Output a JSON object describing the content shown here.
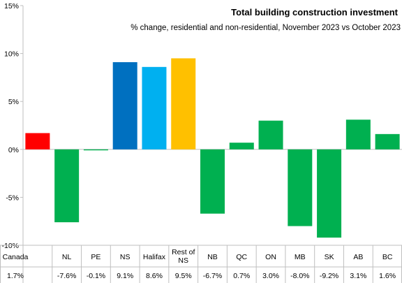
{
  "chart_data": {
    "type": "bar",
    "title": "Total building construction investment",
    "subtitle": "% change, residential and non-residential, November 2023 vs October 2023",
    "xlabel": "",
    "ylabel": "",
    "ylim": [
      -10,
      15
    ],
    "yticks": [
      15,
      10,
      5,
      0,
      -5,
      -10
    ],
    "ytick_labels": [
      "15%",
      "10%",
      "5%",
      "0%",
      "-5%",
      "-10%"
    ],
    "grid": false,
    "legend": "none",
    "categories": [
      "Canada",
      "NL",
      "PE",
      "NS",
      "Halifax",
      "Rest of NS",
      "NB",
      "QC",
      "ON",
      "MB",
      "SK",
      "AB",
      "BC"
    ],
    "values": [
      1.7,
      -7.6,
      -0.1,
      9.1,
      8.6,
      9.5,
      -6.7,
      0.7,
      3.0,
      -8.0,
      -9.2,
      3.1,
      1.6
    ],
    "value_labels": [
      "1.7%",
      "-7.6%",
      "-0.1%",
      "9.1%",
      "8.6%",
      "9.5%",
      "-6.7%",
      "0.7%",
      "3.0%",
      "-8.0%",
      "-9.2%",
      "3.1%",
      "1.6%"
    ],
    "colors": [
      "#ff0000",
      "#00b050",
      "#00b050",
      "#0070c0",
      "#00b0f0",
      "#ffc000",
      "#00b050",
      "#00b050",
      "#00b050",
      "#00b050",
      "#00b050",
      "#00b050",
      "#00b050"
    ]
  }
}
